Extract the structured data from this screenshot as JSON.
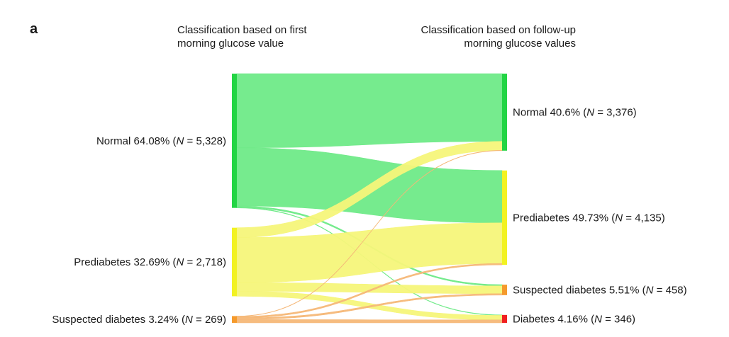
{
  "panel_label": "a",
  "headers": {
    "left": [
      "Classification based on first",
      "morning glucose value"
    ],
    "right": [
      "Classification based on follow-up",
      "morning glucose values"
    ]
  },
  "chart_data": {
    "type": "sankey",
    "left_nodes": [
      {
        "id": "normal",
        "name": "Normal",
        "percent": "64.08%",
        "n": "5,328",
        "color": "#22d544"
      },
      {
        "id": "prediabetes",
        "name": "Prediabetes",
        "percent": "32.69%",
        "n": "2,718",
        "color": "#f2f222"
      },
      {
        "id": "suspected",
        "name": "Suspected diabetes",
        "percent": "3.24%",
        "n": "269",
        "color": "#f59a2c"
      }
    ],
    "right_nodes": [
      {
        "id": "normal",
        "name": "Normal",
        "percent": "40.6%",
        "n": "3,376",
        "color": "#22d544"
      },
      {
        "id": "prediabetes",
        "name": "Prediabetes",
        "percent": "49.73%",
        "n": "4,135",
        "color": "#f2f222"
      },
      {
        "id": "suspected",
        "name": "Suspected diabetes",
        "percent": "5.51%",
        "n": "458",
        "color": "#f59a2c"
      },
      {
        "id": "diabetes",
        "name": "Diabetes",
        "percent": "4.16%",
        "n": "346",
        "color": "#f02020"
      }
    ],
    "links": [
      {
        "source": "normal",
        "target": "normal",
        "value": 2940,
        "color": "#6fea88"
      },
      {
        "source": "normal",
        "target": "prediabetes",
        "value": 2310,
        "color": "#6fea88"
      },
      {
        "source": "normal",
        "target": "suspected",
        "value": 55,
        "color": "#6fea88"
      },
      {
        "source": "normal",
        "target": "diabetes",
        "value": 20,
        "color": "#6fea88"
      },
      {
        "source": "prediabetes",
        "target": "normal",
        "value": 390,
        "color": "#f5f57a"
      },
      {
        "source": "prediabetes",
        "target": "prediabetes",
        "value": 1790,
        "color": "#f5f57a"
      },
      {
        "source": "prediabetes",
        "target": "suspected",
        "value": 340,
        "color": "#f5f57a"
      },
      {
        "source": "prediabetes",
        "target": "diabetes",
        "value": 200,
        "color": "#f5f57a"
      },
      {
        "source": "suspected",
        "target": "normal",
        "value": 14,
        "color": "#f5b878"
      },
      {
        "source": "suspected",
        "target": "prediabetes",
        "value": 60,
        "color": "#f5b878"
      },
      {
        "source": "suspected",
        "target": "suspected",
        "value": 65,
        "color": "#f5b878"
      },
      {
        "source": "suspected",
        "target": "diabetes",
        "value": 130,
        "color": "#f5b878"
      }
    ]
  }
}
